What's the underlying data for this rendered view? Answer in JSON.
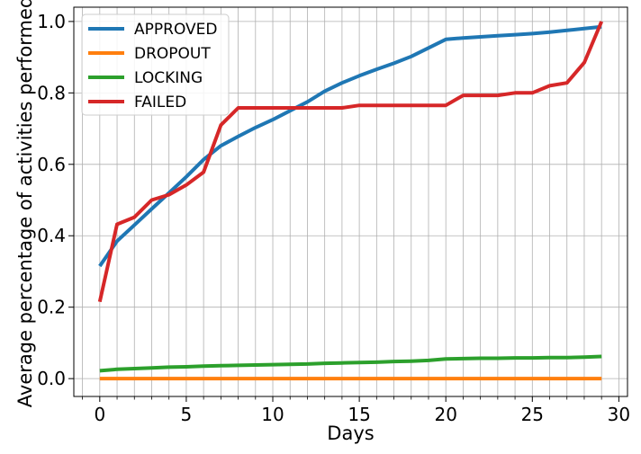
{
  "chart_data": {
    "type": "line",
    "title": "",
    "xlabel": "Days",
    "ylabel": "Average percentage of activities performed",
    "xlim": [
      -1.5,
      30.5
    ],
    "ylim": [
      -0.05,
      1.04
    ],
    "xticks": [
      0,
      5,
      10,
      15,
      20,
      25,
      30
    ],
    "yticks": [
      0.0,
      0.2,
      0.4,
      0.6,
      0.8,
      1.0
    ],
    "xtick_labels": [
      "0",
      "5",
      "10",
      "15",
      "20",
      "25",
      "30"
    ],
    "ytick_labels": [
      "0.0",
      "0.2",
      "0.4",
      "0.6",
      "0.8",
      "1.0"
    ],
    "minor_x_grid_step": 1,
    "grid": true,
    "legend_position": "top-left",
    "x": [
      0,
      1,
      2,
      3,
      4,
      5,
      6,
      7,
      8,
      9,
      10,
      11,
      12,
      13,
      14,
      15,
      16,
      17,
      18,
      19,
      20,
      21,
      22,
      23,
      24,
      25,
      26,
      27,
      28,
      29
    ],
    "series": [
      {
        "name": "APPROVED",
        "color": "#1f77b4",
        "values": [
          0.315,
          0.385,
          0.43,
          0.475,
          0.52,
          0.565,
          0.613,
          0.652,
          0.678,
          0.703,
          0.725,
          0.75,
          0.775,
          0.805,
          0.828,
          0.848,
          0.866,
          0.883,
          0.902,
          0.926,
          0.95,
          0.954,
          0.957,
          0.96,
          0.963,
          0.966,
          0.97,
          0.975,
          0.98,
          0.985
        ]
      },
      {
        "name": "DROPOUT",
        "color": "#ff7f0e",
        "values": [
          0,
          0,
          0,
          0,
          0,
          0,
          0,
          0,
          0,
          0,
          0,
          0,
          0,
          0,
          0,
          0,
          0,
          0,
          0,
          0,
          0,
          0,
          0,
          0,
          0,
          0,
          0,
          0,
          0,
          0
        ]
      },
      {
        "name": "LOCKING",
        "color": "#2ca02c",
        "values": [
          0.022,
          0.026,
          0.028,
          0.03,
          0.032,
          0.033,
          0.035,
          0.036,
          0.037,
          0.038,
          0.039,
          0.04,
          0.041,
          0.043,
          0.044,
          0.045,
          0.046,
          0.048,
          0.049,
          0.051,
          0.055,
          0.056,
          0.057,
          0.057,
          0.058,
          0.058,
          0.059,
          0.059,
          0.06,
          0.062
        ]
      },
      {
        "name": "FAILED",
        "color": "#d62728",
        "values": [
          0.215,
          0.432,
          0.452,
          0.5,
          0.515,
          0.542,
          0.578,
          0.71,
          0.758,
          0.758,
          0.758,
          0.758,
          0.758,
          0.758,
          0.758,
          0.765,
          0.765,
          0.765,
          0.765,
          0.765,
          0.765,
          0.793,
          0.793,
          0.793,
          0.8,
          0.8,
          0.82,
          0.828,
          0.885,
          1.0
        ]
      }
    ]
  }
}
